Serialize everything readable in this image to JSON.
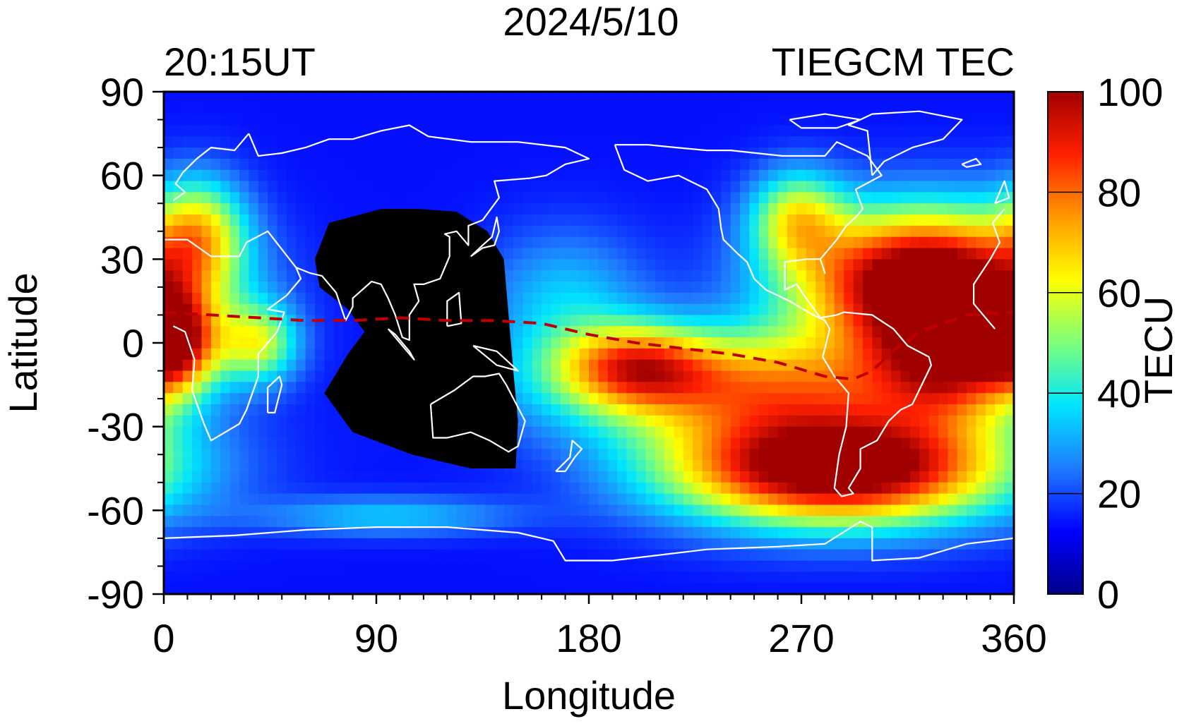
{
  "header": {
    "date": "2024/5/10",
    "time": "20:15UT",
    "model_label": "TIEGCM TEC"
  },
  "colors": {
    "scale": [
      "#00008b",
      "#0000ff",
      "#1f7bff",
      "#00e5ff",
      "#7dff7a",
      "#ffff00",
      "#ff9a00",
      "#ff2000",
      "#a00000"
    ],
    "coastline": "#ffffff",
    "equator_line": "#c00000",
    "night_mask": "#000000"
  },
  "chart_data": {
    "type": "heatmap",
    "title": "2024/5/10",
    "xlabel": "Longitude",
    "ylabel": "Latitude",
    "xlim": [
      0,
      360
    ],
    "ylim": [
      -90,
      90
    ],
    "xticks": [
      "0",
      "90",
      "180",
      "270",
      "360"
    ],
    "yticks": [
      "90",
      "60",
      "30",
      "0",
      "-30",
      "-60",
      "-90"
    ],
    "colorbar": {
      "label": "TECU",
      "range": [
        0,
        100
      ],
      "ticks": [
        "100",
        "80",
        "60",
        "40",
        "20",
        "0"
      ]
    },
    "background_tec": 14,
    "blobs": [
      {
        "lon": 322,
        "lat": 22,
        "slon": 38,
        "slat": 18,
        "amp": 100
      },
      {
        "lon": 268,
        "lat": 45,
        "slon": 14,
        "slat": 12,
        "amp": 40
      },
      {
        "lon": 285,
        "lat": -45,
        "slon": 50,
        "slat": 14,
        "amp": 100
      },
      {
        "lon": 250,
        "lat": -15,
        "slon": 60,
        "slat": 14,
        "amp": 55
      },
      {
        "lon": 200,
        "lat": -8,
        "slon": 22,
        "slat": 10,
        "amp": 45
      },
      {
        "lon": 335,
        "lat": -5,
        "slon": 22,
        "slat": 16,
        "amp": 55
      },
      {
        "lon": 5,
        "lat": 0,
        "slon": 12,
        "slat": 12,
        "amp": 60
      },
      {
        "lon": 40,
        "lat": 0,
        "slon": 12,
        "slat": 10,
        "amp": 40
      },
      {
        "lon": 15,
        "lat": 40,
        "slon": 14,
        "slat": 14,
        "amp": 40
      },
      {
        "lon": 170,
        "lat": 15,
        "slon": 24,
        "slat": 18,
        "amp": 20
      },
      {
        "lon": 95,
        "lat": -62,
        "slon": 38,
        "slat": 5,
        "amp": 20
      }
    ],
    "night_mask_polygon": [
      [
        64,
        30
      ],
      [
        70,
        43
      ],
      [
        92,
        48
      ],
      [
        108,
        48
      ],
      [
        124,
        47
      ],
      [
        137,
        40
      ],
      [
        144,
        30
      ],
      [
        146,
        10
      ],
      [
        148,
        -10
      ],
      [
        150,
        -28
      ],
      [
        149,
        -45
      ],
      [
        130,
        -45
      ],
      [
        105,
        -40
      ],
      [
        80,
        -32
      ],
      [
        68,
        -18
      ],
      [
        78,
        -4
      ],
      [
        85,
        4
      ],
      [
        78,
        12
      ],
      [
        66,
        20
      ]
    ],
    "geomagnetic_equator": [
      [
        0,
        11
      ],
      [
        20,
        10
      ],
      [
        40,
        9
      ],
      [
        60,
        8
      ],
      [
        80,
        8
      ],
      [
        100,
        9
      ],
      [
        120,
        8
      ],
      [
        140,
        8
      ],
      [
        160,
        7
      ],
      [
        180,
        3
      ],
      [
        200,
        0
      ],
      [
        220,
        -2
      ],
      [
        240,
        -4
      ],
      [
        260,
        -7
      ],
      [
        280,
        -12
      ],
      [
        292,
        -13
      ],
      [
        300,
        -10
      ],
      [
        310,
        -2
      ],
      [
        320,
        4
      ],
      [
        340,
        10
      ],
      [
        360,
        11
      ]
    ],
    "coastlines": [
      [
        [
          36,
          75
        ],
        [
          30,
          69
        ],
        [
          20,
          70
        ],
        [
          14,
          66
        ],
        [
          8,
          61
        ],
        [
          5,
          57
        ],
        [
          9,
          54
        ],
        [
          4,
          51
        ],
        [
          -4,
          48
        ],
        [
          -9,
          43
        ],
        [
          -6,
          36
        ],
        [
          0,
          37
        ],
        [
          10,
          37
        ],
        [
          20,
          31
        ],
        [
          32,
          31
        ],
        [
          35,
          36
        ],
        [
          44,
          40
        ],
        [
          56,
          27
        ],
        [
          58,
          23
        ],
        [
          52,
          17
        ],
        [
          44,
          12
        ],
        [
          51,
          11
        ],
        [
          48,
          4
        ],
        [
          40,
          -4
        ],
        [
          40,
          -12
        ],
        [
          35,
          -24
        ],
        [
          32,
          -29
        ],
        [
          20,
          -35
        ],
        [
          17,
          -29
        ],
        [
          12,
          -17
        ],
        [
          13,
          -6
        ],
        [
          9,
          4
        ],
        [
          4,
          6
        ],
        [
          -8,
          5
        ],
        [
          -17,
          14
        ],
        [
          -17,
          21
        ],
        [
          -10,
          30
        ],
        [
          -6,
          36
        ]
      ],
      [
        [
          56,
          27
        ],
        [
          62,
          25
        ],
        [
          67,
          24
        ],
        [
          73,
          18
        ],
        [
          77,
          8
        ],
        [
          80,
          13
        ],
        [
          80,
          16
        ],
        [
          88,
          22
        ],
        [
          92,
          21
        ],
        [
          95,
          16
        ],
        [
          98,
          10
        ],
        [
          101,
          2
        ],
        [
          104,
          1
        ],
        [
          104,
          10
        ],
        [
          108,
          15
        ],
        [
          106,
          21
        ],
        [
          110,
          21
        ],
        [
          117,
          23
        ],
        [
          121,
          31
        ],
        [
          121,
          38
        ],
        [
          119,
          39
        ],
        [
          124,
          40
        ],
        [
          129,
          35
        ],
        [
          129,
          42
        ],
        [
          135,
          44
        ],
        [
          142,
          52
        ],
        [
          140,
          58
        ],
        [
          155,
          59
        ],
        [
          162,
          60
        ],
        [
          170,
          64
        ],
        [
          180,
          66
        ],
        [
          170,
          70
        ],
        [
          150,
          72
        ],
        [
          130,
          72
        ],
        [
          112,
          74
        ],
        [
          104,
          78
        ],
        [
          92,
          76
        ],
        [
          80,
          73
        ],
        [
          70,
          73
        ],
        [
          60,
          70
        ],
        [
          50,
          68
        ],
        [
          40,
          67
        ],
        [
          36,
          75
        ]
      ],
      [
        [
          113,
          -22
        ],
        [
          114,
          -34
        ],
        [
          120,
          -34
        ],
        [
          130,
          -32
        ],
        [
          138,
          -35
        ],
        [
          146,
          -39
        ],
        [
          150,
          -37
        ],
        [
          153,
          -28
        ],
        [
          145,
          -15
        ],
        [
          142,
          -11
        ],
        [
          136,
          -12
        ],
        [
          131,
          -12
        ],
        [
          123,
          -17
        ],
        [
          113,
          -22
        ]
      ],
      [
        [
          166,
          -46
        ],
        [
          170,
          -46
        ],
        [
          174,
          -41
        ],
        [
          177,
          -38
        ],
        [
          173,
          -35
        ],
        [
          172,
          -41
        ],
        [
          166,
          -46
        ]
      ],
      [
        [
          191,
          71
        ],
        [
          205,
          71
        ],
        [
          217,
          70
        ],
        [
          230,
          69
        ],
        [
          240,
          69
        ],
        [
          262,
          67
        ],
        [
          280,
          67
        ],
        [
          285,
          72
        ],
        [
          298,
          67
        ],
        [
          304,
          60
        ],
        [
          293,
          55
        ],
        [
          296,
          48
        ],
        [
          293,
          45
        ],
        [
          289,
          42
        ],
        [
          285,
          37
        ],
        [
          278,
          30
        ],
        [
          280,
          25
        ],
        [
          278,
          30
        ],
        [
          272,
          30
        ],
        [
          263,
          29
        ],
        [
          263,
          19
        ],
        [
          268,
          21
        ],
        [
          272,
          16
        ],
        [
          278,
          9
        ],
        [
          285,
          10
        ],
        [
          288,
          11
        ],
        [
          300,
          10
        ],
        [
          309,
          5
        ],
        [
          315,
          -1
        ],
        [
          324,
          -5
        ],
        [
          325,
          -8
        ],
        [
          317,
          -22
        ],
        [
          312,
          -24
        ],
        [
          307,
          -28
        ],
        [
          302,
          -35
        ],
        [
          295,
          -38
        ],
        [
          295,
          -45
        ],
        [
          290,
          -52
        ],
        [
          292,
          -54
        ],
        [
          287,
          -55
        ],
        [
          284,
          -52
        ],
        [
          286,
          -40
        ],
        [
          289,
          -30
        ],
        [
          290,
          -18
        ],
        [
          284,
          -12
        ],
        [
          279,
          -5
        ],
        [
          280,
          -2
        ],
        [
          282,
          5
        ],
        [
          280,
          8
        ],
        [
          275,
          10
        ],
        [
          265,
          15
        ],
        [
          255,
          19
        ],
        [
          250,
          23
        ],
        [
          247,
          29
        ],
        [
          243,
          32
        ],
        [
          237,
          37
        ],
        [
          236,
          41
        ],
        [
          235,
          48
        ],
        [
          230,
          55
        ],
        [
          218,
          60
        ],
        [
          205,
          58
        ],
        [
          195,
          62
        ],
        [
          191,
          71
        ]
      ],
      [
        [
          300,
          60
        ],
        [
          305,
          65
        ],
        [
          317,
          70
        ],
        [
          330,
          73
        ],
        [
          338,
          80
        ],
        [
          320,
          83
        ],
        [
          300,
          82
        ],
        [
          290,
          78
        ],
        [
          298,
          76
        ],
        [
          300,
          60
        ]
      ],
      [
        [
          265,
          80
        ],
        [
          280,
          82
        ],
        [
          295,
          80
        ],
        [
          285,
          77
        ],
        [
          270,
          77
        ],
        [
          265,
          80
        ]
      ],
      [
        [
          338,
          64
        ],
        [
          344,
          66
        ],
        [
          346,
          64
        ],
        [
          340,
          63
        ],
        [
          338,
          64
        ]
      ],
      [
        [
          352,
          50
        ],
        [
          356,
          58
        ],
        [
          358,
          52
        ],
        [
          352,
          50
        ]
      ],
      [
        [
          44,
          -25
        ],
        [
          47,
          -25
        ],
        [
          50,
          -15
        ],
        [
          49,
          -12
        ],
        [
          44,
          -16
        ],
        [
          44,
          -25
        ]
      ],
      [
        [
          130,
          31
        ],
        [
          135,
          34
        ],
        [
          140,
          35
        ],
        [
          142,
          40
        ],
        [
          141,
          45
        ],
        [
          139,
          38
        ],
        [
          135,
          35
        ],
        [
          130,
          31
        ]
      ],
      [
        [
          120,
          6
        ],
        [
          126,
          7
        ],
        [
          125,
          18
        ],
        [
          120,
          15
        ],
        [
          120,
          6
        ]
      ],
      [
        [
          95,
          5
        ],
        [
          106,
          -6
        ],
        [
          104,
          -3
        ],
        [
          98,
          3
        ],
        [
          95,
          5
        ]
      ],
      [
        [
          131,
          -1
        ],
        [
          141,
          -3
        ],
        [
          150,
          -10
        ],
        [
          141,
          -8
        ],
        [
          131,
          -1
        ]
      ],
      [
        [
          0,
          -70
        ],
        [
          30,
          -69
        ],
        [
          60,
          -67
        ],
        [
          90,
          -66
        ],
        [
          120,
          -66
        ],
        [
          150,
          -68
        ],
        [
          165,
          -71
        ],
        [
          170,
          -78
        ],
        [
          190,
          -78
        ],
        [
          200,
          -77
        ],
        [
          230,
          -74
        ],
        [
          260,
          -73
        ],
        [
          280,
          -72
        ],
        [
          295,
          -64
        ],
        [
          300,
          -66
        ],
        [
          300,
          -78
        ],
        [
          320,
          -77
        ],
        [
          340,
          -72
        ],
        [
          360,
          -70
        ]
      ]
    ]
  }
}
